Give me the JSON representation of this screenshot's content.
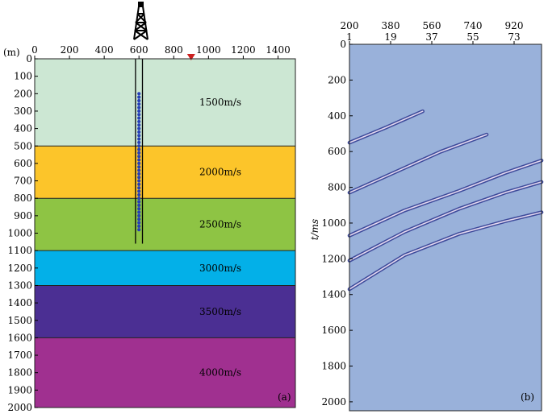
{
  "chart_data": [
    {
      "type": "layered-velocity-model",
      "panel_label": "(a)",
      "depth_axis": {
        "unit_label": "(m)",
        "range": [
          0,
          2000
        ],
        "ticks": [
          "0",
          "100",
          "200",
          "300",
          "400",
          "500",
          "600",
          "700",
          "800",
          "900",
          "1000",
          "1100",
          "1200",
          "1300",
          "1400",
          "1500",
          "1600",
          "1700",
          "1800",
          "1900",
          "2000"
        ]
      },
      "x_axis": {
        "range": [
          0,
          1500
        ],
        "ticks": [
          "0",
          "200",
          "400",
          "600",
          "800",
          "1000",
          "1200",
          "1400"
        ]
      },
      "layers": [
        {
          "top": 0,
          "bottom": 500,
          "velocity": "1500m/s",
          "color": "#cce7d3"
        },
        {
          "top": 500,
          "bottom": 800,
          "velocity": "2000m/s",
          "color": "#fcc52a"
        },
        {
          "top": 800,
          "bottom": 1100,
          "velocity": "2500m/s",
          "color": "#8ec444"
        },
        {
          "top": 1100,
          "bottom": 1300,
          "velocity": "3000m/s",
          "color": "#03b0e8"
        },
        {
          "top": 1300,
          "bottom": 1600,
          "velocity": "3500m/s",
          "color": "#4b2f93"
        },
        {
          "top": 1600,
          "bottom": 2000,
          "velocity": "4000m/s",
          "color": "#a03090"
        }
      ],
      "well": {
        "x": 600,
        "casing_left": 580,
        "casing_right": 620,
        "bottom_depth": 1060
      },
      "receivers": {
        "x": 600,
        "start_depth": 200,
        "end_depth": 980,
        "spacing": 20,
        "color": "#2740b8"
      },
      "source": {
        "x": 900,
        "depth": 0,
        "color": "#cc2020"
      }
    },
    {
      "type": "seismic-section",
      "panel_label": "(b)",
      "y_axis": {
        "label": "t/ms",
        "range": [
          0,
          2050
        ],
        "ticks": [
          "0",
          "200",
          "400",
          "600",
          "800",
          "1000",
          "1200",
          "1400",
          "1600",
          "1800",
          "2000"
        ]
      },
      "x_axis_top": {
        "range": [
          1,
          85
        ],
        "depth_labels": [
          "200",
          "380",
          "560",
          "740",
          "920"
        ],
        "trace_labels": [
          "1",
          "19",
          "37",
          "55",
          "73"
        ],
        "trace_positions": [
          1,
          19,
          37,
          55,
          73
        ]
      },
      "background": "#99b1da",
      "events": [
        {
          "name": "reflection-1",
          "traces": [
            1,
            17,
            33
          ],
          "times": [
            550,
            465,
            375
          ]
        },
        {
          "name": "reflection-2",
          "traces": [
            1,
            21,
            41,
            61
          ],
          "times": [
            830,
            715,
            600,
            505
          ]
        },
        {
          "name": "reflection-3",
          "traces": [
            1,
            25,
            49,
            69,
            85
          ],
          "times": [
            1070,
            930,
            820,
            720,
            650
          ]
        },
        {
          "name": "reflection-4",
          "traces": [
            1,
            25,
            49,
            69,
            85
          ],
          "times": [
            1210,
            1050,
            920,
            830,
            770
          ]
        },
        {
          "name": "reflection-5",
          "traces": [
            1,
            25,
            49,
            69,
            85
          ],
          "times": [
            1370,
            1180,
            1060,
            990,
            940
          ]
        }
      ]
    }
  ]
}
